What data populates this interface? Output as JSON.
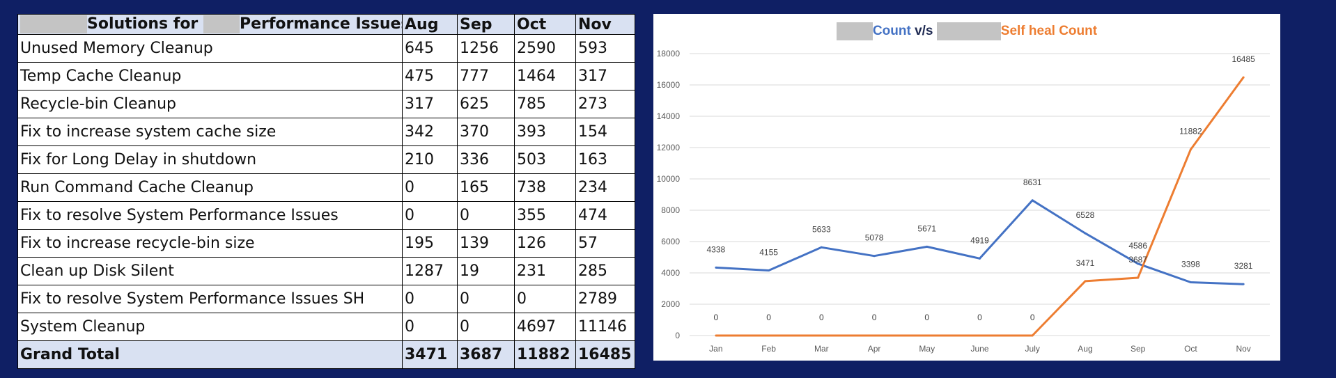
{
  "table": {
    "title_part1": "Solutions for",
    "title_part2": "Performance Issues",
    "columns": [
      "Aug",
      "Sep",
      "Oct",
      "Nov"
    ],
    "rows": [
      {
        "label": "Unused Memory Cleanup",
        "values": [
          "645",
          "1256",
          "2590",
          "593"
        ]
      },
      {
        "label": "Temp Cache Cleanup",
        "values": [
          "475",
          "777",
          "1464",
          "317"
        ]
      },
      {
        "label": "Recycle-bin Cleanup",
        "values": [
          "317",
          "625",
          "785",
          "273"
        ]
      },
      {
        "label": "Fix to increase system cache size",
        "values": [
          "342",
          "370",
          "393",
          "154"
        ]
      },
      {
        "label": "Fix for Long Delay in shutdown",
        "values": [
          "210",
          "336",
          "503",
          "163"
        ]
      },
      {
        "label": "Run Command Cache Cleanup",
        "values": [
          "0",
          "165",
          "738",
          "234"
        ]
      },
      {
        "label": "Fix to resolve System Performance Issues",
        "values": [
          "0",
          "0",
          "355",
          "474"
        ]
      },
      {
        "label": "Fix to increase recycle-bin size",
        "values": [
          "195",
          "139",
          "126",
          "57"
        ]
      },
      {
        "label": "Clean up Disk Silent",
        "values": [
          "1287",
          "19",
          "231",
          "285"
        ]
      },
      {
        "label": "Fix to resolve System Performance Issues SH",
        "values": [
          "0",
          "0",
          "0",
          "2789"
        ]
      },
      {
        "label": "System Cleanup",
        "values": [
          "0",
          "0",
          "4697",
          "11146"
        ]
      }
    ],
    "total": {
      "label": "Grand Total",
      "values": [
        "3471",
        "3687",
        "11882",
        "16485"
      ]
    }
  },
  "chart_title": {
    "part1": "Count",
    "part2": "v/s",
    "part3": "Self heal Count"
  },
  "chart_data": {
    "type": "line",
    "title": "Count v/s Self heal Count",
    "categories": [
      "Jan",
      "Feb",
      "Mar",
      "Apr",
      "May",
      "June",
      "July",
      "Aug",
      "Sep",
      "Oct",
      "Nov"
    ],
    "ylim": [
      0,
      18000
    ],
    "yticks": [
      0,
      2000,
      4000,
      6000,
      8000,
      10000,
      12000,
      14000,
      16000,
      18000
    ],
    "grid": true,
    "series": [
      {
        "color": "#4472c4",
        "values": [
          4338,
          4155,
          5633,
          5078,
          5671,
          4919,
          8631,
          6528,
          4586,
          3398,
          3281
        ]
      },
      {
        "color": "#ed7d31",
        "values": [
          0,
          0,
          0,
          0,
          0,
          0,
          0,
          3471,
          3687,
          11882,
          16485
        ]
      }
    ]
  }
}
